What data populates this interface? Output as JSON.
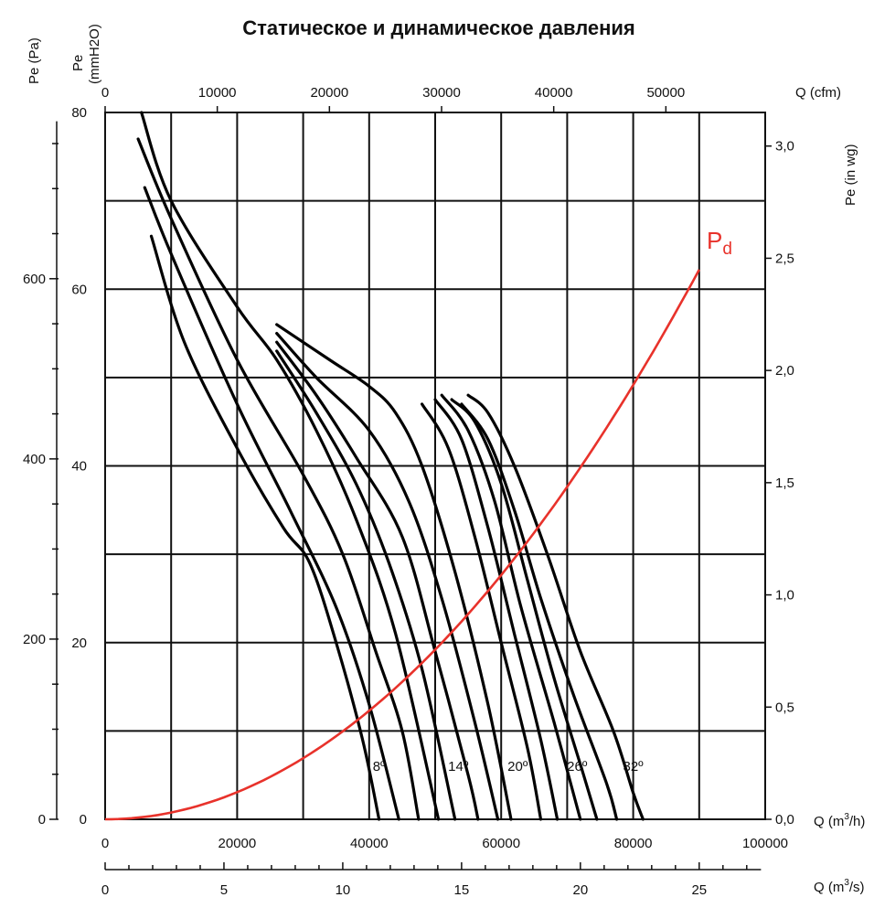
{
  "chart_data": {
    "type": "line",
    "title": "Статическое и динамическое давления",
    "axes": {
      "left_pa": {
        "label": "Pe (Pa)",
        "ticks": [
          "0",
          "200",
          "400",
          "600"
        ],
        "values": [
          0,
          200,
          400,
          600
        ]
      },
      "left_mmh2o": {
        "label_line1": "Pe",
        "label_line2": "(mmH2O)",
        "ticks": [
          "0",
          "20",
          "40",
          "60",
          "80"
        ],
        "values": [
          0,
          20,
          40,
          60,
          80
        ],
        "ylim": [
          0,
          80
        ]
      },
      "right_inwg": {
        "label": "Pe (in wg)",
        "ticks": [
          "0,0",
          "0,5",
          "1,0",
          "1,5",
          "2,0",
          "2,5",
          "3,0"
        ],
        "values": [
          0,
          0.5,
          1.0,
          1.5,
          2.0,
          2.5,
          3.0
        ]
      },
      "top_cfm": {
        "label": "Q (cfm)",
        "ticks": [
          "0",
          "10000",
          "20000",
          "30000",
          "40000",
          "50000"
        ],
        "values": [
          0,
          10000,
          20000,
          30000,
          40000,
          50000
        ]
      },
      "bottom_m3h": {
        "label": "Q (m",
        "label_sup": "3",
        "label_end": "/h)",
        "ticks": [
          "0",
          "20000",
          "40000",
          "60000",
          "80000",
          "100000"
        ],
        "values": [
          0,
          20000,
          40000,
          60000,
          80000,
          100000
        ],
        "xlim": [
          0,
          100000
        ]
      },
      "bottom_m3s": {
        "label": "Q (m",
        "label_sup": "3",
        "label_end": "/s)",
        "ticks": [
          "0",
          "5",
          "10",
          "15",
          "20",
          "25"
        ],
        "values": [
          0,
          5,
          10,
          15,
          20,
          25
        ]
      }
    },
    "grid": true,
    "angle_labels": [
      {
        "text": "8º",
        "x": 41500,
        "y": 5.5
      },
      {
        "text": "14º",
        "x": 53500,
        "y": 5.5
      },
      {
        "text": "20º",
        "x": 62500,
        "y": 5.5
      },
      {
        "text": "26º",
        "x": 71500,
        "y": 5.5
      },
      {
        "text": "32º",
        "x": 80000,
        "y": 5.5
      }
    ],
    "pd_label": {
      "text": "P",
      "sub": "d"
    },
    "pd_color": "#e8322b",
    "series": [
      {
        "points": [
          [
            7000,
            66
          ],
          [
            12000,
            54
          ],
          [
            20000,
            42
          ],
          [
            27000,
            33
          ],
          [
            31000,
            29
          ],
          [
            35000,
            20
          ],
          [
            39000,
            9
          ],
          [
            41500,
            0
          ]
        ]
      },
      {
        "points": [
          [
            6000,
            71.5
          ],
          [
            10000,
            64
          ],
          [
            20000,
            47
          ],
          [
            28000,
            35
          ],
          [
            35000,
            24
          ],
          [
            40000,
            13
          ],
          [
            44500,
            0
          ]
        ]
      },
      {
        "points": [
          [
            5000,
            77
          ],
          [
            10000,
            68
          ],
          [
            20000,
            52
          ],
          [
            30000,
            39
          ],
          [
            36000,
            30
          ],
          [
            41000,
            19
          ],
          [
            45000,
            10
          ],
          [
            47500,
            0
          ]
        ]
      },
      {
        "points": [
          [
            5500,
            80
          ],
          [
            10000,
            70
          ],
          [
            20000,
            58
          ],
          [
            26000,
            52
          ],
          [
            32000,
            44
          ],
          [
            38000,
            34
          ],
          [
            44000,
            21
          ],
          [
            50500,
            0
          ]
        ]
      },
      {
        "points": [
          [
            26000,
            53
          ],
          [
            32000,
            46
          ],
          [
            38000,
            38
          ],
          [
            43000,
            29
          ],
          [
            48000,
            17
          ],
          [
            53000,
            0
          ]
        ]
      },
      {
        "points": [
          [
            26000,
            54
          ],
          [
            32000,
            48
          ],
          [
            38000,
            41
          ],
          [
            45000,
            32
          ],
          [
            50000,
            19
          ],
          [
            55000,
            5
          ],
          [
            56500,
            0
          ]
        ]
      },
      {
        "points": [
          [
            26000,
            55
          ],
          [
            32000,
            50
          ],
          [
            40000,
            44
          ],
          [
            46000,
            36
          ],
          [
            51000,
            25
          ],
          [
            56000,
            11
          ],
          [
            59500,
            0
          ]
        ]
      },
      {
        "points": [
          [
            26000,
            56
          ],
          [
            34000,
            52
          ],
          [
            40000,
            49
          ],
          [
            44000,
            46
          ],
          [
            48000,
            40
          ],
          [
            53000,
            28
          ],
          [
            58000,
            13
          ],
          [
            61500,
            0
          ]
        ]
      },
      {
        "points": [
          [
            48000,
            47
          ],
          [
            52000,
            42
          ],
          [
            56000,
            32
          ],
          [
            60000,
            20
          ],
          [
            64000,
            8
          ],
          [
            66000,
            0
          ]
        ]
      },
      {
        "points": [
          [
            50000,
            47.5
          ],
          [
            54000,
            43
          ],
          [
            58000,
            33
          ],
          [
            62000,
            21
          ],
          [
            66000,
            9
          ],
          [
            68500,
            0
          ]
        ]
      },
      {
        "points": [
          [
            51000,
            48
          ],
          [
            55000,
            44
          ],
          [
            59000,
            36
          ],
          [
            63000,
            24
          ],
          [
            68000,
            11
          ],
          [
            72000,
            0
          ]
        ]
      },
      {
        "points": [
          [
            52500,
            47.5
          ],
          [
            56000,
            45
          ],
          [
            60000,
            38
          ],
          [
            64000,
            27
          ],
          [
            68000,
            16
          ],
          [
            72500,
            5
          ],
          [
            74500,
            0
          ]
        ]
      },
      {
        "points": [
          [
            54000,
            47
          ],
          [
            58000,
            43
          ],
          [
            62000,
            35
          ],
          [
            66000,
            25
          ],
          [
            71000,
            14
          ],
          [
            76000,
            4
          ],
          [
            77500,
            0
          ]
        ]
      },
      {
        "points": [
          [
            55000,
            48
          ],
          [
            58000,
            46
          ],
          [
            62000,
            40
          ],
          [
            67000,
            30
          ],
          [
            72000,
            19
          ],
          [
            77000,
            10
          ],
          [
            80000,
            3
          ],
          [
            81500,
            0
          ]
        ]
      }
    ],
    "pd_curve": {
      "coefficient": 7.68e-09,
      "x": [
        0,
        90000
      ]
    }
  }
}
